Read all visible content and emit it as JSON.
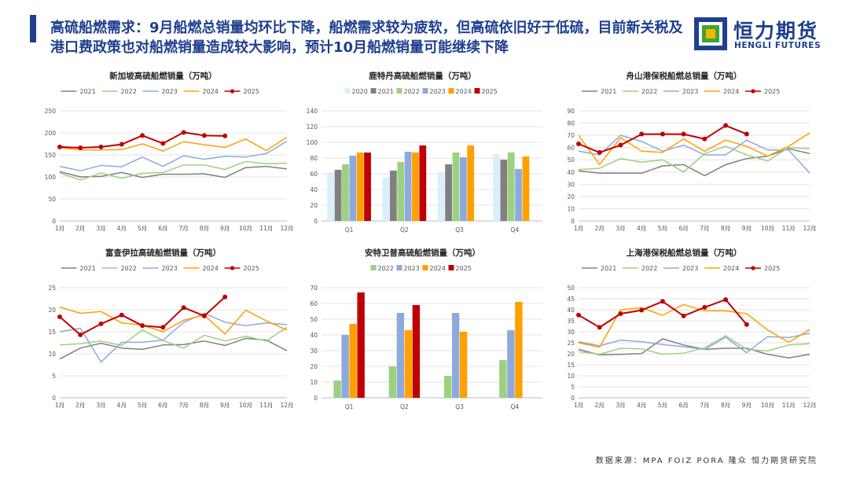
{
  "headline": "高硫船燃需求：9月船燃总销量均环比下降，船燃需求较为疲软，但高硫依旧好于低硫，目前新关税及港口费政策也对船燃销量造成较大影响，预计10月船燃销量可能继续下降",
  "logo": {
    "name": "恒力期货",
    "sub": "HENGLI FUTURES"
  },
  "footer": "数据来源：MPA FOIZ PORA 隆众 恒力期货研究院",
  "colors": {
    "2020": "#d9f0fb",
    "2021": "#808080",
    "2022": "#9bd17f",
    "2023": "#8eaadc",
    "2024": "#ffa000",
    "2025": "#c00000"
  },
  "chart_data": [
    {
      "id": "singapore",
      "type": "line",
      "title": "新加坡高硫船燃销量（万吨）",
      "categories": [
        "1月",
        "2月",
        "3月",
        "4月",
        "5月",
        "6月",
        "7月",
        "8月",
        "9月",
        "10月",
        "11月",
        "12月"
      ],
      "yticks": [
        "0",
        "50",
        "100",
        "150",
        "200",
        "250"
      ],
      "ylim": [
        0,
        250
      ],
      "series": [
        {
          "name": "2021",
          "values": [
            112,
            100,
            101,
            110,
            99,
            106,
            106,
            107,
            99,
            121,
            124,
            118
          ]
        },
        {
          "name": "2022",
          "values": [
            109,
            93,
            109,
            97,
            108,
            110,
            127,
            127,
            117,
            135,
            130,
            131
          ]
        },
        {
          "name": "2023",
          "values": [
            124,
            114,
            126,
            123,
            145,
            124,
            148,
            140,
            147,
            145,
            153,
            181
          ]
        },
        {
          "name": "2024",
          "values": [
            166,
            161,
            161,
            162,
            175,
            159,
            180,
            173,
            167,
            186,
            160,
            190
          ]
        },
        {
          "name": "2025",
          "values": [
            168,
            166,
            168,
            174,
            194,
            176,
            201,
            194,
            193,
            null,
            null,
            null
          ]
        }
      ]
    },
    {
      "id": "rotterdam",
      "type": "bar",
      "title": "鹿特丹高硫船燃销量（万吨）",
      "categories": [
        "Q1",
        "Q2",
        "Q3",
        "Q4"
      ],
      "yticks": [
        "0",
        "20",
        "40",
        "60",
        "80",
        "100",
        "120",
        "140"
      ],
      "ylim": [
        0,
        140
      ],
      "series": [
        {
          "name": "2020",
          "values": [
            62,
            55,
            62,
            85
          ]
        },
        {
          "name": "2021",
          "values": [
            65,
            64,
            72,
            78
          ]
        },
        {
          "name": "2022",
          "values": [
            72,
            75,
            87,
            87
          ]
        },
        {
          "name": "2023",
          "values": [
            83,
            88,
            81,
            66
          ]
        },
        {
          "name": "2024",
          "values": [
            87,
            87,
            96,
            82
          ]
        },
        {
          "name": "2025",
          "values": [
            87,
            96,
            null,
            null
          ]
        }
      ]
    },
    {
      "id": "zhoushan",
      "type": "line",
      "title": "舟山港保税船燃总销量（万吨）",
      "categories": [
        "1月",
        "2月",
        "3月",
        "4月",
        "5月",
        "6月",
        "7月",
        "8月",
        "9月",
        "10月",
        "11月",
        "12月"
      ],
      "yticks": [
        "0",
        "10",
        "20",
        "30",
        "40",
        "50",
        "60",
        "70",
        "80",
        "90"
      ],
      "ylim": [
        0,
        90
      ],
      "series": [
        {
          "name": "2021",
          "values": [
            41,
            39,
            39,
            39,
            45,
            46,
            37,
            46,
            51,
            53,
            59,
            55
          ]
        },
        {
          "name": "2022",
          "values": [
            42,
            43,
            51,
            48,
            50,
            40,
            55,
            61,
            54,
            49,
            60,
            59
          ]
        },
        {
          "name": "2023",
          "values": [
            57,
            54,
            70,
            65,
            57,
            62,
            54,
            54,
            66,
            58,
            58,
            39
          ]
        },
        {
          "name": "2024",
          "values": [
            70,
            46,
            68,
            57,
            56,
            67,
            57,
            66,
            61,
            53,
            61,
            72
          ]
        },
        {
          "name": "2025",
          "values": [
            63,
            56,
            62,
            71,
            71,
            71,
            67,
            78,
            71,
            null,
            null,
            null
          ]
        }
      ]
    },
    {
      "id": "fujairah",
      "type": "line",
      "title": "富查伊拉高硫船燃销量（万吨）",
      "categories": [
        "1月",
        "2月",
        "3月",
        "4月",
        "5月",
        "6月",
        "7月",
        "8月",
        "9月",
        "10月",
        "11月",
        "12月"
      ],
      "yticks": [
        "0",
        "5",
        "10",
        "15",
        "20",
        "25"
      ],
      "ylim": [
        0,
        25
      ],
      "series": [
        {
          "name": "2021",
          "values": [
            8.8,
            11.3,
            12.4,
            11.3,
            11.0,
            12.0,
            12.1,
            12.9,
            11.9,
            13.5,
            13.1,
            10.7
          ]
        },
        {
          "name": "2022",
          "values": [
            12.0,
            12.3,
            12.9,
            11.9,
            15.4,
            13.0,
            11.3,
            14.2,
            12.9,
            14.0,
            12.9,
            16.0
          ]
        },
        {
          "name": "2023",
          "values": [
            15.0,
            15.8,
            8.1,
            12.6,
            12.6,
            13.1,
            17.1,
            19.2,
            17.2,
            16.4,
            17.0,
            16.6
          ]
        },
        {
          "name": "2024",
          "values": [
            20.6,
            19.2,
            19.6,
            17.0,
            16.5,
            15.0,
            17.6,
            18.8,
            14.5,
            19.9,
            17.5,
            15.4
          ]
        },
        {
          "name": "2025",
          "values": [
            18.4,
            14.3,
            16.8,
            18.8,
            16.4,
            16.0,
            20.5,
            18.6,
            22.9,
            null,
            null,
            null
          ]
        }
      ]
    },
    {
      "id": "antwerp",
      "type": "bar",
      "title": "安特卫普高硫船燃销量（万吨）",
      "categories": [
        "Q1",
        "Q2",
        "Q3",
        "Q4"
      ],
      "yticks": [
        "0",
        "10",
        "20",
        "30",
        "40",
        "50",
        "60",
        "70"
      ],
      "ylim": [
        0,
        70
      ],
      "series": [
        {
          "name": "2022",
          "values": [
            11,
            20,
            14,
            24
          ]
        },
        {
          "name": "2023",
          "values": [
            40,
            54,
            54,
            43
          ]
        },
        {
          "name": "2024",
          "values": [
            47,
            43,
            42,
            61
          ]
        },
        {
          "name": "2025",
          "values": [
            67,
            59,
            null,
            null
          ]
        }
      ]
    },
    {
      "id": "shanghai",
      "type": "line",
      "title": "上海港保税船燃总销量（万吨）",
      "categories": [
        "1月",
        "2月",
        "3月",
        "4月",
        "5月",
        "6月",
        "7月",
        "8月",
        "9月",
        "10月",
        "11月",
        "12月"
      ],
      "yticks": [
        "0",
        "5",
        "10",
        "15",
        "20",
        "25",
        "30",
        "35",
        "40",
        "45",
        "50"
      ],
      "ylim": [
        0,
        50
      ],
      "series": [
        {
          "name": "2021",
          "values": [
            22,
            19.5,
            19.7,
            20.1,
            26.8,
            24,
            22,
            22.5,
            22.5,
            19.8,
            18.1,
            19.8
          ]
        },
        {
          "name": "2022",
          "values": [
            21,
            19.8,
            22.5,
            22.2,
            19.8,
            20.3,
            22.7,
            28.2,
            22,
            21.3,
            24,
            24.6
          ]
        },
        {
          "name": "2023",
          "values": [
            25.5,
            23.6,
            26.2,
            25.5,
            24.2,
            23.2,
            22,
            27.5,
            20.5,
            27.8,
            27.4,
            29.3
          ]
        },
        {
          "name": "2024",
          "values": [
            25,
            23,
            40,
            40.9,
            37.5,
            42.4,
            39.5,
            39.5,
            38.2,
            30.8,
            25.2,
            31
          ]
        },
        {
          "name": "2025",
          "values": [
            37.6,
            32,
            38.2,
            39.8,
            43.8,
            37.2,
            41.1,
            44.6,
            33.3,
            null,
            null,
            null
          ]
        }
      ]
    }
  ]
}
